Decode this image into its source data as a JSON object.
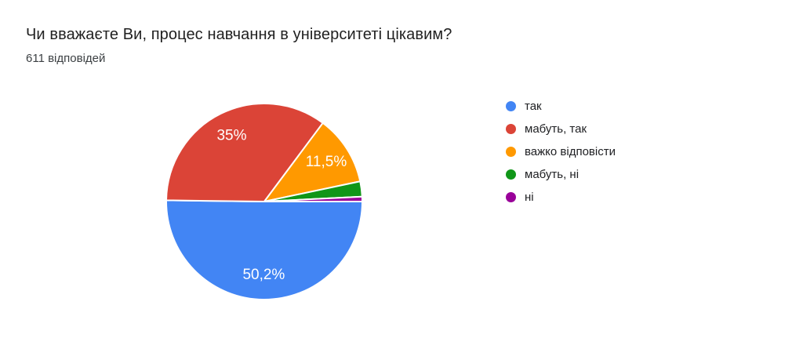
{
  "header": {
    "title": "Чи вважаєте Ви, процес навчання в університеті цікавим?",
    "responses": "611 відповідей"
  },
  "colors": {
    "background": "#ffffff",
    "title_text": "#212121",
    "subtitle_text": "#3c4043",
    "slice_label_text": "#ffffff",
    "slice_border": "#ffffff"
  },
  "chart_data": {
    "type": "pie",
    "title": "Чи вважаєте Ви, процес навчання в університеті цікавим?",
    "subtitle": "611 відповідей",
    "total_responses": 611,
    "legend_position": "right",
    "start_angle_deg": 0,
    "direction": "clockwise",
    "slices": [
      {
        "label": "так",
        "value_pct": 50.2,
        "display_label": "50,2%",
        "color": "#4285F4"
      },
      {
        "label": "мабуть, так",
        "value_pct": 35.0,
        "display_label": "35%",
        "color": "#DB4437"
      },
      {
        "label": "важко відповісти",
        "value_pct": 11.5,
        "display_label": "11,5%",
        "color": "#FF9900"
      },
      {
        "label": "мабуть, ні",
        "value_pct": 2.5,
        "display_label": "",
        "color": "#109618"
      },
      {
        "label": "ні",
        "value_pct": 0.8,
        "display_label": "",
        "color": "#990099"
      }
    ]
  }
}
